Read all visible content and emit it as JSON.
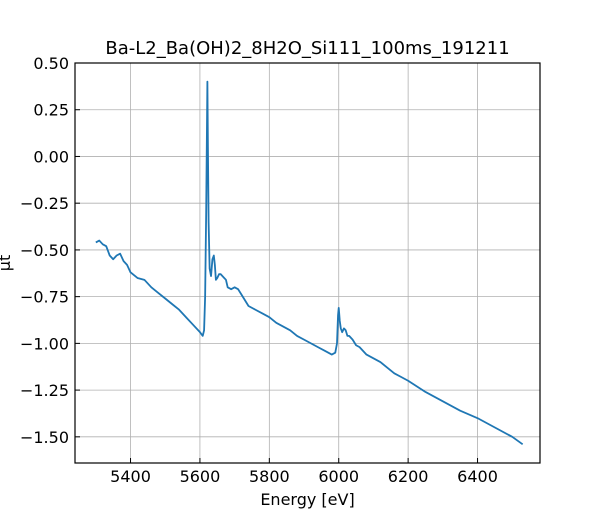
{
  "chart_data": {
    "type": "line",
    "title": "Ba-L2_Ba(OH)2_8H2O_Si111_100ms_191211",
    "xlabel": "Energy [eV]",
    "ylabel": "μt",
    "xlim": [
      5240,
      6580
    ],
    "ylim": [
      -1.64,
      0.5
    ],
    "xticks": [
      5400,
      5600,
      5800,
      6000,
      6200,
      6400
    ],
    "yticks": [
      0.5,
      0.25,
      0.0,
      -0.25,
      -0.5,
      -0.75,
      -1.0,
      -1.25,
      -1.5
    ],
    "ytick_labels": [
      "0.50",
      "0.25",
      "0.00",
      "−0.25",
      "−0.50",
      "−0.75",
      "−1.00",
      "−1.25",
      "−1.50"
    ],
    "grid": true,
    "color": "#1f77b4",
    "x": [
      5300,
      5310,
      5320,
      5330,
      5340,
      5350,
      5360,
      5370,
      5380,
      5390,
      5400,
      5420,
      5440,
      5460,
      5480,
      5500,
      5520,
      5540,
      5560,
      5580,
      5600,
      5608,
      5612,
      5615,
      5618,
      5620,
      5621.5,
      5623,
      5625,
      5628,
      5632,
      5636,
      5640,
      5643,
      5646,
      5650,
      5655,
      5660,
      5665,
      5670,
      5675,
      5680,
      5690,
      5700,
      5710,
      5720,
      5730,
      5740,
      5760,
      5780,
      5800,
      5820,
      5840,
      5860,
      5880,
      5900,
      5920,
      5940,
      5960,
      5980,
      5990,
      5995,
      5998,
      6000,
      6003,
      6006,
      6010,
      6015,
      6020,
      6025,
      6030,
      6040,
      6050,
      6060,
      6070,
      6080,
      6100,
      6120,
      6140,
      6160,
      6180,
      6200,
      6250,
      6300,
      6350,
      6400,
      6450,
      6500,
      6530
    ],
    "y": [
      -0.46,
      -0.45,
      -0.47,
      -0.48,
      -0.53,
      -0.55,
      -0.53,
      -0.52,
      -0.56,
      -0.58,
      -0.62,
      -0.65,
      -0.66,
      -0.7,
      -0.73,
      -0.76,
      -0.79,
      -0.82,
      -0.86,
      -0.9,
      -0.94,
      -0.96,
      -0.93,
      -0.75,
      -0.3,
      0.1,
      0.4,
      0.05,
      -0.35,
      -0.6,
      -0.64,
      -0.55,
      -0.53,
      -0.58,
      -0.66,
      -0.65,
      -0.63,
      -0.63,
      -0.64,
      -0.65,
      -0.66,
      -0.7,
      -0.71,
      -0.7,
      -0.71,
      -0.74,
      -0.77,
      -0.8,
      -0.82,
      -0.84,
      -0.86,
      -0.89,
      -0.91,
      -0.93,
      -0.96,
      -0.98,
      -1.0,
      -1.02,
      -1.04,
      -1.06,
      -1.05,
      -1.0,
      -0.85,
      -0.81,
      -0.88,
      -0.92,
      -0.94,
      -0.92,
      -0.93,
      -0.96,
      -0.96,
      -0.98,
      -1.01,
      -1.02,
      -1.04,
      -1.06,
      -1.08,
      -1.1,
      -1.13,
      -1.16,
      -1.18,
      -1.2,
      -1.26,
      -1.31,
      -1.36,
      -1.4,
      -1.45,
      -1.5,
      -1.54
    ]
  }
}
